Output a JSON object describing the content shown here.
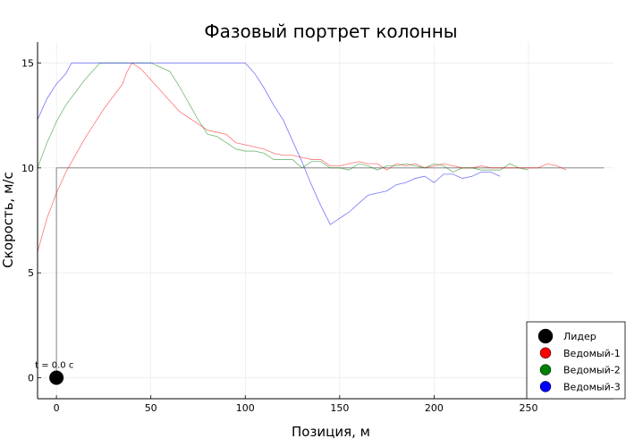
{
  "chart_data": {
    "type": "line",
    "title": "Фазовый портрет колонны",
    "xlabel": "Позиция, м",
    "ylabel": "Скорость, м/с",
    "xlim": [
      -10,
      295
    ],
    "ylim": [
      -1,
      16
    ],
    "xticks": [
      0,
      50,
      100,
      150,
      200,
      250
    ],
    "yticks": [
      0,
      5,
      10,
      15
    ],
    "grid": true,
    "legend_position": "bottom-right",
    "annotation": {
      "text": "t = 0.0 с",
      "x": 0,
      "y": 0
    },
    "reference_lines": [
      {
        "points": [
          [
            0,
            0
          ],
          [
            0,
            10
          ],
          [
            290,
            10
          ]
        ],
        "color": "#777777"
      }
    ],
    "series": [
      {
        "name": "Лидер",
        "color": "#000000",
        "type": "scatter",
        "points": [
          [
            0,
            0
          ]
        ]
      },
      {
        "name": "Ведомый-1",
        "color": "#ff0000",
        "points": [
          [
            -10,
            6
          ],
          [
            -5,
            7.6
          ],
          [
            0,
            8.8
          ],
          [
            5,
            9.8
          ],
          [
            10,
            10.6
          ],
          [
            15,
            11.4
          ],
          [
            20,
            12.1
          ],
          [
            25,
            12.8
          ],
          [
            30,
            13.4
          ],
          [
            35,
            14.0
          ],
          [
            37,
            14.5
          ],
          [
            40,
            15.0
          ],
          [
            45,
            14.7
          ],
          [
            50,
            14.2
          ],
          [
            55,
            13.7
          ],
          [
            60,
            13.2
          ],
          [
            65,
            12.7
          ],
          [
            70,
            12.4
          ],
          [
            75,
            12.1
          ],
          [
            80,
            11.8
          ],
          [
            85,
            11.7
          ],
          [
            90,
            11.6
          ],
          [
            95,
            11.2
          ],
          [
            100,
            11.1
          ],
          [
            105,
            11.0
          ],
          [
            110,
            10.9
          ],
          [
            115,
            10.7
          ],
          [
            120,
            10.6
          ],
          [
            125,
            10.6
          ],
          [
            130,
            10.5
          ],
          [
            135,
            10.4
          ],
          [
            140,
            10.4
          ],
          [
            145,
            10.1
          ],
          [
            150,
            10.1
          ],
          [
            155,
            10.2
          ],
          [
            160,
            10.3
          ],
          [
            165,
            10.2
          ],
          [
            170,
            10.2
          ],
          [
            175,
            9.9
          ],
          [
            180,
            10.2
          ],
          [
            185,
            10.1
          ],
          [
            190,
            10.2
          ],
          [
            195,
            10.0
          ],
          [
            200,
            10.1
          ],
          [
            205,
            10.2
          ],
          [
            210,
            10.1
          ],
          [
            215,
            10.0
          ],
          [
            220,
            10.0
          ],
          [
            225,
            10.1
          ],
          [
            230,
            10.0
          ],
          [
            235,
            10.0
          ],
          [
            240,
            10.0
          ],
          [
            245,
            10.0
          ],
          [
            250,
            10.0
          ],
          [
            255,
            10.0
          ],
          [
            260,
            10.2
          ],
          [
            265,
            10.1
          ],
          [
            270,
            9.9
          ]
        ]
      },
      {
        "name": "Ведомый-2",
        "color": "#008000",
        "points": [
          [
            -10,
            10.0
          ],
          [
            -5,
            11.2
          ],
          [
            0,
            12.2
          ],
          [
            5,
            13.0
          ],
          [
            10,
            13.6
          ],
          [
            15,
            14.2
          ],
          [
            20,
            14.7
          ],
          [
            23,
            15.0
          ],
          [
            50,
            15.0
          ],
          [
            55,
            14.8
          ],
          [
            60,
            14.6
          ],
          [
            65,
            13.9
          ],
          [
            70,
            13.1
          ],
          [
            75,
            12.3
          ],
          [
            80,
            11.6
          ],
          [
            85,
            11.5
          ],
          [
            90,
            11.2
          ],
          [
            95,
            10.9
          ],
          [
            100,
            10.8
          ],
          [
            105,
            10.8
          ],
          [
            110,
            10.7
          ],
          [
            115,
            10.4
          ],
          [
            120,
            10.4
          ],
          [
            125,
            10.4
          ],
          [
            130,
            10.0
          ],
          [
            135,
            10.3
          ],
          [
            140,
            10.3
          ],
          [
            145,
            10.0
          ],
          [
            150,
            10.0
          ],
          [
            155,
            9.9
          ],
          [
            160,
            10.2
          ],
          [
            165,
            10.1
          ],
          [
            170,
            9.9
          ],
          [
            175,
            10.1
          ],
          [
            180,
            10.1
          ],
          [
            185,
            10.2
          ],
          [
            190,
            10.1
          ],
          [
            195,
            10.0
          ],
          [
            200,
            10.2
          ],
          [
            205,
            10.1
          ],
          [
            210,
            9.8
          ],
          [
            215,
            10.0
          ],
          [
            220,
            10.0
          ],
          [
            225,
            9.9
          ],
          [
            230,
            9.9
          ],
          [
            235,
            9.9
          ],
          [
            240,
            10.2
          ],
          [
            245,
            10.0
          ],
          [
            250,
            9.9
          ]
        ]
      },
      {
        "name": "Ведомый-3",
        "color": "#0000ff",
        "points": [
          [
            -10,
            12.3
          ],
          [
            -5,
            13.3
          ],
          [
            0,
            14.0
          ],
          [
            5,
            14.5
          ],
          [
            8,
            15.0
          ],
          [
            100,
            15.0
          ],
          [
            105,
            14.5
          ],
          [
            110,
            13.8
          ],
          [
            115,
            13.0
          ],
          [
            120,
            12.3
          ],
          [
            125,
            11.3
          ],
          [
            130,
            10.3
          ],
          [
            135,
            9.2
          ],
          [
            140,
            8.2
          ],
          [
            145,
            7.3
          ],
          [
            150,
            7.6
          ],
          [
            155,
            7.9
          ],
          [
            160,
            8.3
          ],
          [
            165,
            8.7
          ],
          [
            170,
            8.8
          ],
          [
            175,
            8.9
          ],
          [
            180,
            9.2
          ],
          [
            185,
            9.3
          ],
          [
            190,
            9.5
          ],
          [
            195,
            9.6
          ],
          [
            200,
            9.3
          ],
          [
            205,
            9.7
          ],
          [
            210,
            9.7
          ],
          [
            215,
            9.5
          ],
          [
            220,
            9.6
          ],
          [
            225,
            9.8
          ],
          [
            230,
            9.8
          ],
          [
            235,
            9.6
          ]
        ]
      }
    ]
  }
}
